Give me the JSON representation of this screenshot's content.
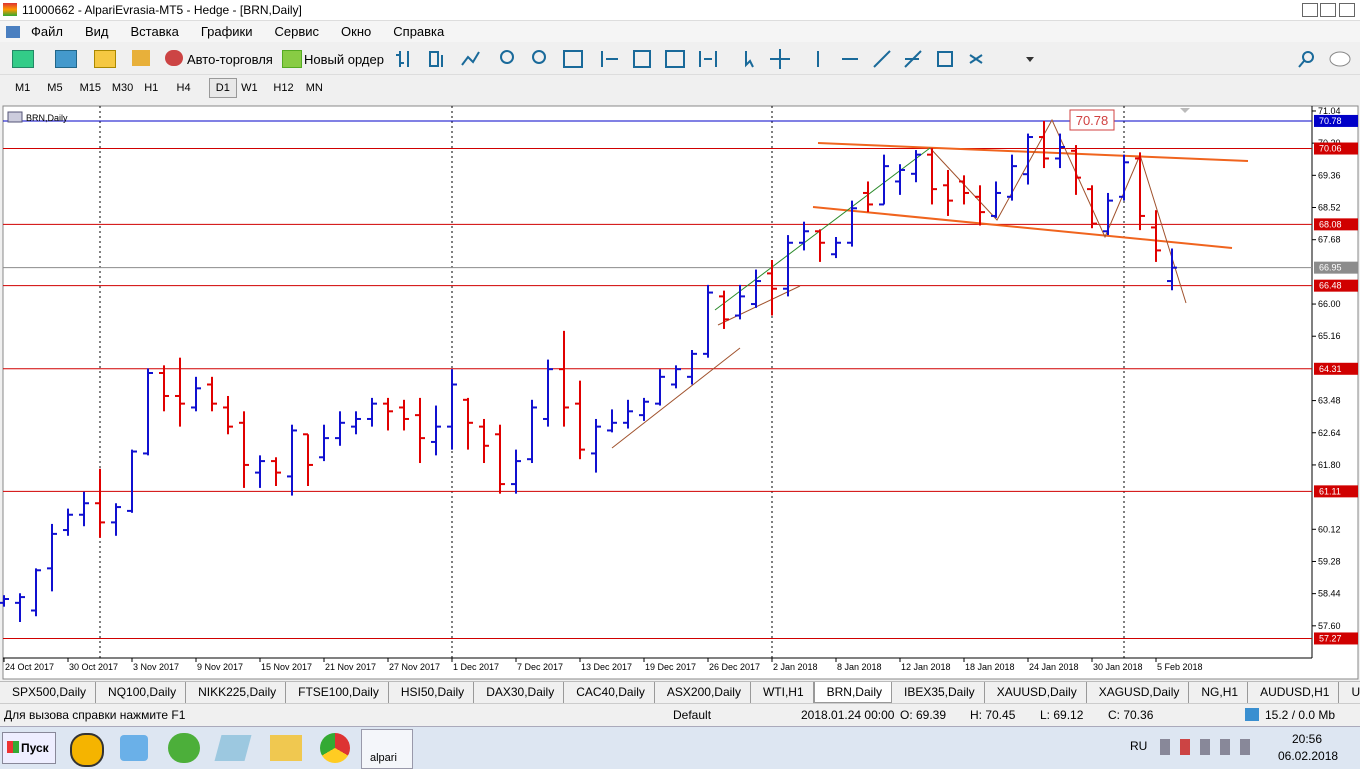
{
  "window": {
    "title": "11000662 - AlpariEvrasia-MT5 - Hedge - [BRN,Daily]"
  },
  "menu": [
    "Файл",
    "Вид",
    "Вставка",
    "Графики",
    "Сервис",
    "Окно",
    "Справка"
  ],
  "toolbar": {
    "auto_trading": "Авто-торговля",
    "new_order": "Новый ордер"
  },
  "timeframes": [
    {
      "label": "M1"
    },
    {
      "label": "M5"
    },
    {
      "label": "M15"
    },
    {
      "label": "M30"
    },
    {
      "label": "H1"
    },
    {
      "label": "H4"
    },
    {
      "label": "D1",
      "active": true
    },
    {
      "label": "W1"
    },
    {
      "label": "H12"
    },
    {
      "label": "MN"
    }
  ],
  "chart_data": {
    "type": "ohlc",
    "title": "BRN,Daily",
    "categories": [
      "24 Oct 2017",
      null,
      null,
      null,
      "30 Oct 2017",
      null,
      null,
      null,
      "3 Nov 2017",
      null,
      null,
      null,
      "9 Nov 2017",
      null,
      null,
      null,
      "15 Nov 2017",
      null,
      null,
      null,
      "21 Nov 2017",
      null,
      null,
      null,
      "27 Nov 2017",
      null,
      null,
      null,
      "1 Dec 2017",
      null,
      null,
      null,
      "7 Dec 2017",
      null,
      null,
      null,
      "13 Dec 2017",
      null,
      null,
      null,
      "19 Dec 2017",
      null,
      null,
      null,
      "26 Dec 2017",
      null,
      null,
      null,
      "2 Jan 2018",
      null,
      null,
      null,
      "8 Jan 2018",
      null,
      null,
      null,
      "12 Jan 2018",
      null,
      null,
      null,
      "18 Jan 2018",
      null,
      null,
      null,
      "24 Jan 2018",
      null,
      null,
      null,
      "30 Jan 2018",
      null,
      null,
      null,
      "5 Feb 2018",
      null
    ],
    "open": [
      58.2,
      58.2,
      58.0,
      59.1,
      60.1,
      60.5,
      60.8,
      60.3,
      60.6,
      62.1,
      64.2,
      63.6,
      63.3,
      63.9,
      63.3,
      62.9,
      61.6,
      61.9,
      61.5,
      62.6,
      62.0,
      62.5,
      62.8,
      63.0,
      63.4,
      63.3,
      63.1,
      62.4,
      62.8,
      63.5,
      62.8,
      62.6,
      61.3,
      61.95,
      63.0,
      64.3,
      63.4,
      62.1,
      62.7,
      62.9,
      63.1,
      63.4,
      63.9,
      64.1,
      64.7,
      66.2,
      65.7,
      66.0,
      66.8,
      66.4,
      67.6,
      67.9,
      67.3,
      67.6,
      68.9,
      68.6,
      69.2,
      69.4,
      69.9,
      69.1,
      69.2,
      68.8,
      68.3,
      68.8,
      69.39,
      70.36,
      69.8,
      70.0,
      69.0,
      67.9,
      68.8,
      69.8,
      68.0,
      66.6
    ],
    "high": [
      58.4,
      58.45,
      59.1,
      60.26,
      60.66,
      61.1,
      61.7,
      60.8,
      62.2,
      64.32,
      64.4,
      64.6,
      64.1,
      64.1,
      63.6,
      63.2,
      62.05,
      62.0,
      62.85,
      62.6,
      62.85,
      63.2,
      63.2,
      63.55,
      63.55,
      63.5,
      63.55,
      63.35,
      64.3,
      63.55,
      63.0,
      62.85,
      62.2,
      63.5,
      64.55,
      65.3,
      64.0,
      63.0,
      63.25,
      63.5,
      63.55,
      64.3,
      64.4,
      64.8,
      66.5,
      66.35,
      66.5,
      66.9,
      67.15,
      67.8,
      68.15,
      67.95,
      67.75,
      68.7,
      69.2,
      69.9,
      69.65,
      70.02,
      70.07,
      69.5,
      69.36,
      69.1,
      69.2,
      69.9,
      70.45,
      70.78,
      70.45,
      70.15,
      69.1,
      68.9,
      69.9,
      69.96,
      68.45,
      67.45
    ],
    "low": [
      58.1,
      57.7,
      57.85,
      58.5,
      59.95,
      60.2,
      59.9,
      59.95,
      60.55,
      62.05,
      63.2,
      62.8,
      63.2,
      63.2,
      62.6,
      61.2,
      61.2,
      61.25,
      61.0,
      61.25,
      61.9,
      62.3,
      62.6,
      62.8,
      62.7,
      62.7,
      61.85,
      62.05,
      62.2,
      62.2,
      61.85,
      61.05,
      61.05,
      61.85,
      62.8,
      62.8,
      61.95,
      61.6,
      62.65,
      62.75,
      62.95,
      63.35,
      63.8,
      63.9,
      64.6,
      65.35,
      65.6,
      65.9,
      65.7,
      66.2,
      67.4,
      67.1,
      67.2,
      67.5,
      68.4,
      68.6,
      68.85,
      69.18,
      68.6,
      68.3,
      68.6,
      68.05,
      68.25,
      68.7,
      69.12,
      69.55,
      69.55,
      68.85,
      67.98,
      67.8,
      68.7,
      67.93,
      67.1,
      66.36
    ],
    "close": [
      58.3,
      58.35,
      59.05,
      60.0,
      60.5,
      60.8,
      60.3,
      60.7,
      62.15,
      64.2,
      63.6,
      63.4,
      63.8,
      63.4,
      62.8,
      61.8,
      61.9,
      61.6,
      62.7,
      61.8,
      62.5,
      62.9,
      63.0,
      63.4,
      63.2,
      63.0,
      62.5,
      62.8,
      63.9,
      62.9,
      62.3,
      61.3,
      61.9,
      63.3,
      64.3,
      63.3,
      62.2,
      62.8,
      62.9,
      63.2,
      63.45,
      64.1,
      64.3,
      64.7,
      66.3,
      65.6,
      66.2,
      66.6,
      66.4,
      67.6,
      67.9,
      67.6,
      67.6,
      68.5,
      68.6,
      69.6,
      69.5,
      69.9,
      69.0,
      68.7,
      68.9,
      68.4,
      68.9,
      69.6,
      70.36,
      69.8,
      70.1,
      69.3,
      68.1,
      68.7,
      69.7,
      68.3,
      67.4,
      66.95
    ],
    "up_color": "#1010d0",
    "down_color": "#e00000",
    "ylim": [
      56.76,
      71.17
    ],
    "yticks": [
      71.04,
      {
        "value": 70.2,
        "label": "70.20"
      },
      69.36,
      68.52,
      67.68,
      {
        "value": 66.0,
        "label": "66.00"
      },
      65.16,
      63.48,
      62.64,
      {
        "value": 61.8,
        "label": "61.80"
      },
      60.12,
      59.28,
      58.44,
      {
        "value": 57.6,
        "label": "57.60"
      }
    ],
    "levels": [
      {
        "value": 70.78,
        "color": "#0000c8"
      },
      {
        "value": 70.06,
        "color": "#d00000"
      },
      {
        "value": 68.08,
        "color": "#d00000"
      },
      {
        "value": 66.95,
        "color": "#8c8c8c"
      },
      {
        "value": 66.48,
        "color": "#d00000"
      },
      {
        "value": 64.31,
        "color": "#d00000"
      },
      {
        "value": 61.11,
        "color": "#d00000"
      },
      {
        "value": 57.27,
        "color": "#d00000"
      }
    ],
    "annotation": "70.78"
  },
  "tabs": [
    {
      "label": "SPX500,Daily"
    },
    {
      "label": "NQ100,Daily"
    },
    {
      "label": "NIKK225,Daily"
    },
    {
      "label": "FTSE100,Daily"
    },
    {
      "label": "HSI50,Daily"
    },
    {
      "label": "DAX30,Daily"
    },
    {
      "label": "CAC40,Daily"
    },
    {
      "label": "ASX200,Daily"
    },
    {
      "label": "WTI,H1"
    },
    {
      "label": "BRN,Daily",
      "active": true
    },
    {
      "label": "IBEX35,Daily"
    },
    {
      "label": "XAUUSD,Daily"
    },
    {
      "label": "XAGUSD,Daily"
    },
    {
      "label": "NG,H1"
    },
    {
      "label": "AUDUSD,H1"
    },
    {
      "label": "U"
    }
  ],
  "status": {
    "help": "Для вызова справки нажмите F1",
    "profile": "Default",
    "datetime": "2018.01.24 00:00",
    "open": "O: 69.39",
    "high": "H: 70.45",
    "low": "L: 69.12",
    "close": "C: 70.36",
    "memory": "15.2 / 0.0 Mb"
  },
  "taskbar": {
    "start": "Пуск",
    "app": "alpari",
    "lang": "RU",
    "time": "20:56",
    "date": "06.02.2018"
  }
}
